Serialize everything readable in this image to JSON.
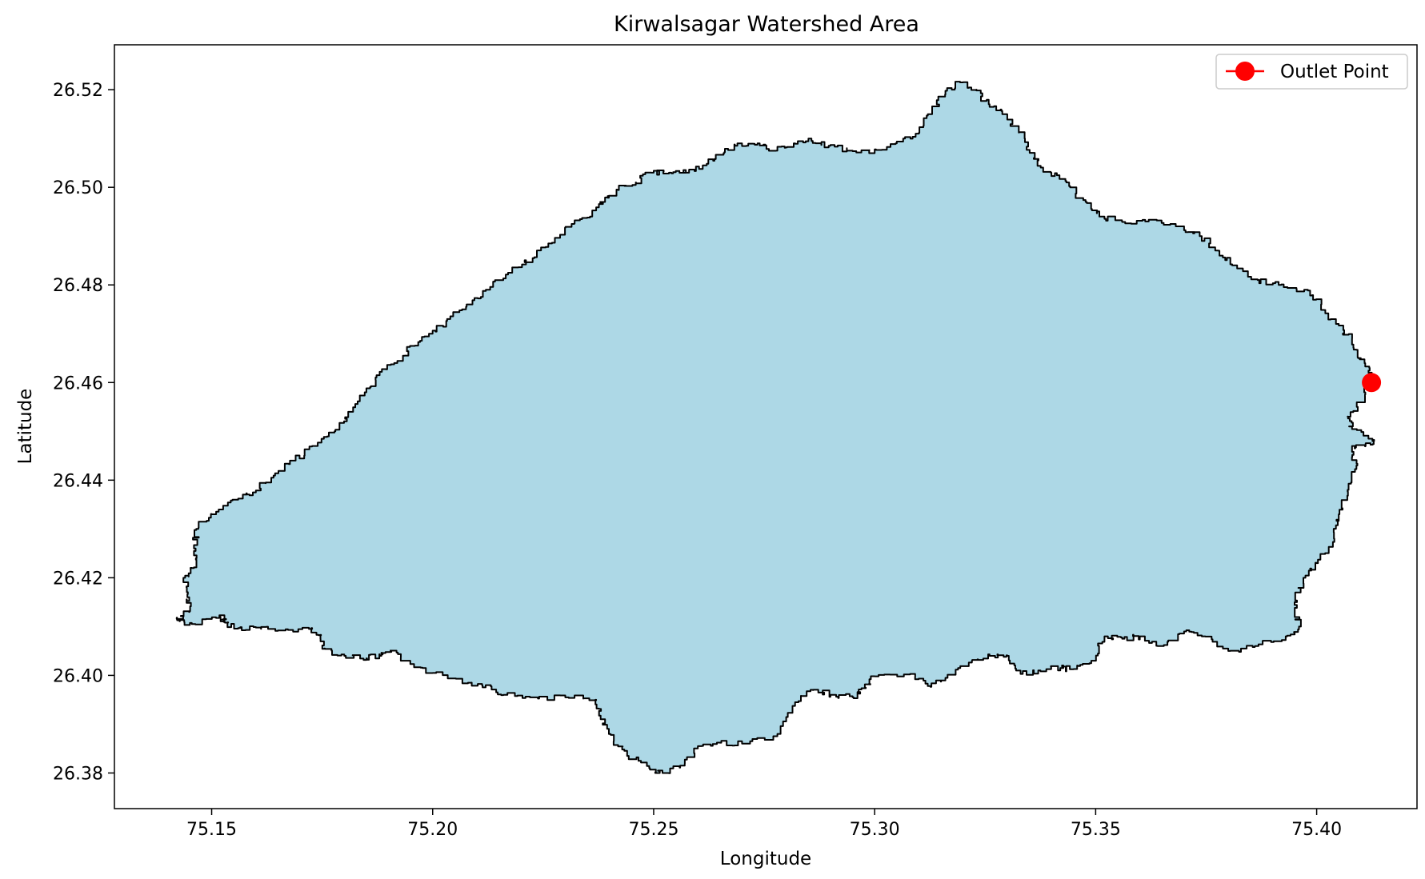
{
  "chart_data": {
    "type": "map",
    "title": "Kirwalsagar Watershed Area",
    "xlabel": "Longitude",
    "ylabel": "Latitude",
    "xlim": [
      75.128,
      75.4227
    ],
    "ylim": [
      26.3727,
      26.5292
    ],
    "xticks": [
      75.15,
      75.2,
      75.25,
      75.3,
      75.35,
      75.4
    ],
    "yticks": [
      26.38,
      26.4,
      26.42,
      26.44,
      26.46,
      26.48,
      26.5,
      26.52
    ],
    "xtick_labels": [
      "75.15",
      "75.20",
      "75.25",
      "75.30",
      "75.35",
      "75.40"
    ],
    "ytick_labels": [
      "26.38",
      "26.40",
      "26.42",
      "26.44",
      "26.46",
      "26.48",
      "26.50",
      "26.52"
    ],
    "watershed": {
      "fill": "#add8e6",
      "edge": "#000000",
      "boundary": [
        [
          75.1422,
          26.4113
        ],
        [
          75.1455,
          26.4105
        ],
        [
          75.152,
          26.412
        ],
        [
          75.153,
          26.4108
        ],
        [
          75.156,
          26.4097
        ],
        [
          75.16,
          26.4098
        ],
        [
          75.165,
          26.4092
        ],
        [
          75.172,
          26.4095
        ],
        [
          75.1745,
          26.4082
        ],
        [
          75.1755,
          26.4055
        ],
        [
          75.18,
          26.404
        ],
        [
          75.185,
          26.4035
        ],
        [
          75.188,
          26.404
        ],
        [
          75.1905,
          26.4048
        ],
        [
          75.194,
          26.403
        ],
        [
          75.2,
          26.4005
        ],
        [
          75.208,
          26.3985
        ],
        [
          75.212,
          26.398
        ],
        [
          75.216,
          26.396
        ],
        [
          75.222,
          26.3955
        ],
        [
          75.23,
          26.3955
        ],
        [
          75.237,
          26.395
        ],
        [
          75.238,
          26.391
        ],
        [
          75.241,
          26.3865
        ],
        [
          75.244,
          26.3835
        ],
        [
          75.249,
          26.381
        ],
        [
          75.252,
          26.38
        ],
        [
          75.256,
          26.3815
        ],
        [
          75.26,
          26.3855
        ],
        [
          75.265,
          26.3862
        ],
        [
          75.27,
          26.386
        ],
        [
          75.278,
          26.388
        ],
        [
          75.282,
          26.3945
        ],
        [
          75.286,
          26.397
        ],
        [
          75.29,
          26.396
        ],
        [
          75.295,
          26.3955
        ],
        [
          75.298,
          26.3975
        ],
        [
          75.3,
          26.3998
        ],
        [
          75.308,
          26.4003
        ],
        [
          75.312,
          26.3978
        ],
        [
          75.316,
          26.3995
        ],
        [
          75.322,
          26.403
        ],
        [
          75.326,
          26.404
        ],
        [
          75.33,
          26.404
        ],
        [
          75.333,
          26.4003
        ],
        [
          75.337,
          26.401
        ],
        [
          75.342,
          26.4015
        ],
        [
          75.345,
          26.4013
        ],
        [
          75.349,
          26.403
        ],
        [
          75.352,
          26.408
        ],
        [
          75.356,
          26.4075
        ],
        [
          75.36,
          26.408
        ],
        [
          75.364,
          26.406
        ],
        [
          75.37,
          26.409
        ],
        [
          75.374,
          26.408
        ],
        [
          75.38,
          26.405
        ],
        [
          75.386,
          26.406
        ],
        [
          75.393,
          26.408
        ],
        [
          75.396,
          26.41
        ],
        [
          75.395,
          26.415
        ],
        [
          75.397,
          26.42
        ],
        [
          75.4,
          26.423
        ],
        [
          75.404,
          26.428
        ],
        [
          75.405,
          26.433
        ],
        [
          75.407,
          26.438
        ],
        [
          75.409,
          26.443
        ],
        [
          75.408,
          26.447
        ],
        [
          75.411,
          26.447
        ],
        [
          75.413,
          26.448
        ],
        [
          75.408,
          26.451
        ],
        [
          75.407,
          26.453
        ],
        [
          75.411,
          26.458
        ],
        [
          75.4124,
          26.46
        ],
        [
          75.412,
          26.463
        ],
        [
          75.41,
          26.465
        ],
        [
          75.408,
          26.469
        ],
        [
          75.405,
          26.472
        ],
        [
          75.401,
          26.476
        ],
        [
          75.398,
          26.479
        ],
        [
          75.392,
          26.48
        ],
        [
          75.387,
          26.481
        ],
        [
          75.382,
          26.484
        ],
        [
          75.378,
          26.487
        ],
        [
          75.374,
          26.49
        ],
        [
          75.37,
          26.492
        ],
        [
          75.362,
          26.493
        ],
        [
          75.356,
          26.493
        ],
        [
          75.352,
          26.494
        ],
        [
          75.348,
          26.497
        ],
        [
          75.344,
          26.501
        ],
        [
          75.34,
          26.503
        ],
        [
          75.336,
          26.506
        ],
        [
          75.334,
          26.51
        ],
        [
          75.33,
          26.515
        ],
        [
          75.326,
          26.517
        ],
        [
          75.323,
          26.52
        ],
        [
          75.32,
          26.5215
        ],
        [
          75.316,
          26.519
        ],
        [
          75.313,
          26.515
        ],
        [
          75.31,
          26.511
        ],
        [
          75.305,
          26.509
        ],
        [
          75.3,
          26.507
        ],
        [
          75.295,
          26.5075
        ],
        [
          75.29,
          26.5085
        ],
        [
          75.286,
          26.5095
        ],
        [
          75.282,
          26.509
        ],
        [
          75.278,
          26.5075
        ],
        [
          75.274,
          26.509
        ],
        [
          75.27,
          26.509
        ],
        [
          75.266,
          26.507
        ],
        [
          75.262,
          26.5045
        ],
        [
          75.258,
          26.503
        ],
        [
          75.254,
          26.503
        ],
        [
          75.25,
          26.503
        ],
        [
          75.246,
          26.501
        ],
        [
          75.242,
          26.4995
        ],
        [
          75.239,
          26.497
        ],
        [
          75.236,
          26.494
        ],
        [
          75.232,
          26.4925
        ],
        [
          75.227,
          26.4885
        ],
        [
          75.223,
          26.4855
        ],
        [
          75.218,
          26.4825
        ],
        [
          75.213,
          26.479
        ],
        [
          75.209,
          26.476
        ],
        [
          75.204,
          26.473
        ],
        [
          75.2,
          26.47
        ],
        [
          75.196,
          26.4675
        ],
        [
          75.192,
          26.464
        ],
        [
          75.188,
          26.4615
        ],
        [
          75.185,
          26.458
        ],
        [
          75.182,
          26.454
        ],
        [
          75.178,
          26.45
        ],
        [
          75.174,
          26.447
        ],
        [
          75.169,
          26.444
        ],
        [
          75.164,
          26.4405
        ],
        [
          75.16,
          26.4375
        ],
        [
          75.156,
          26.436
        ],
        [
          75.151,
          26.433
        ],
        [
          75.147,
          26.43
        ],
        [
          75.146,
          26.426
        ],
        [
          75.146,
          26.422
        ],
        [
          75.144,
          26.42
        ],
        [
          75.1445,
          26.416
        ],
        [
          75.145,
          26.413
        ]
      ]
    },
    "series": [
      {
        "name": "Outlet Point",
        "type": "marker",
        "color": "#ff0000",
        "x": [
          75.4124
        ],
        "y": [
          26.46
        ]
      }
    ],
    "legend": {
      "position": "top-right",
      "entries": [
        "Outlet Point"
      ]
    }
  }
}
